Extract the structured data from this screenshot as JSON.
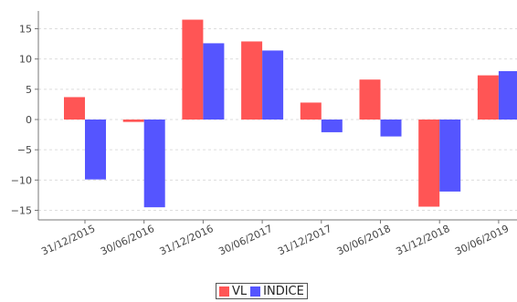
{
  "chart_data": {
    "type": "bar",
    "categories": [
      "31/12/2015",
      "30/06/2016",
      "31/12/2016",
      "30/06/2017",
      "31/12/2017",
      "30/06/2018",
      "31/12/2018",
      "30/06/2019"
    ],
    "series": [
      {
        "name": "VL",
        "color": "#ff5555",
        "values": [
          3.7,
          -0.4,
          16.5,
          12.9,
          2.8,
          6.6,
          -14.4,
          7.3
        ]
      },
      {
        "name": "INDICE",
        "color": "#5555ff",
        "values": [
          -9.9,
          -14.5,
          12.6,
          11.4,
          -2.1,
          -2.8,
          -11.9,
          8.0
        ]
      }
    ],
    "ylim": [
      -16,
      18
    ],
    "yticks": [
      15,
      10,
      5,
      0,
      -5,
      -10,
      -15
    ],
    "ytick_labels": [
      "15",
      "10",
      "5",
      "0",
      "−5",
      "−10",
      "−15"
    ],
    "grid": true,
    "legend_position": "bottom-center",
    "title": "",
    "xlabel": "",
    "ylabel": ""
  }
}
